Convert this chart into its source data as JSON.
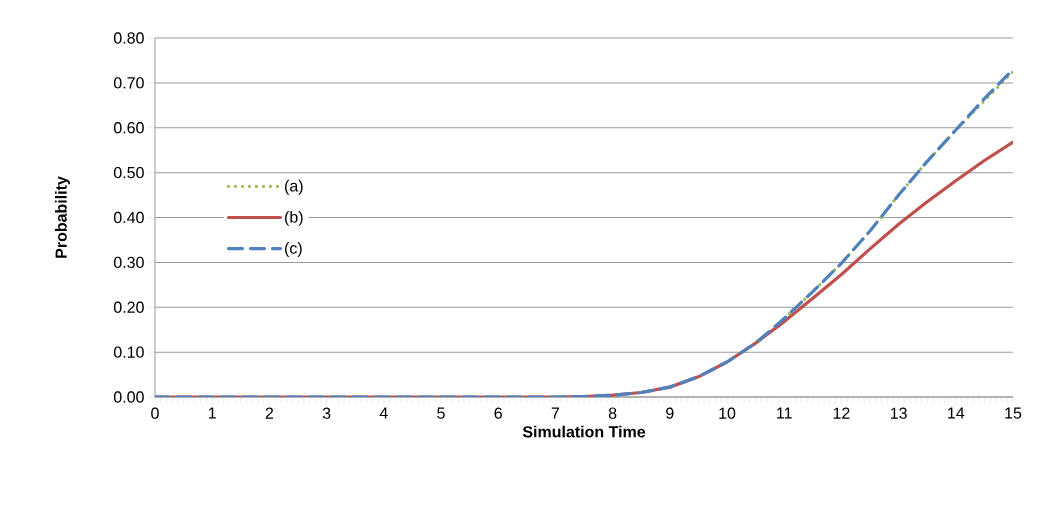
{
  "chart_data": {
    "type": "line",
    "xlabel": "Simulation Time",
    "ylabel": "Probability",
    "x": [
      0,
      1,
      2,
      3,
      4,
      5,
      6,
      7,
      7.5,
      8,
      8.5,
      9,
      9.5,
      10,
      10.5,
      11,
      11.5,
      12,
      12.5,
      13,
      13.5,
      14,
      14.5,
      15
    ],
    "series": [
      {
        "name": "(a)",
        "color": "#9bbb59",
        "line_style": "dotted",
        "values": [
          null,
          null,
          null,
          null,
          null,
          null,
          null,
          null,
          null,
          null,
          null,
          null,
          null,
          null,
          null,
          0.175,
          0.235,
          0.298,
          0.37,
          0.45,
          0.525,
          0.595,
          0.66,
          0.725
        ]
      },
      {
        "name": "(b)",
        "color": "#c0504d",
        "line_style": "solid",
        "values": [
          0,
          0,
          0,
          0,
          0,
          0,
          0,
          0,
          0.001,
          0.004,
          0.01,
          0.022,
          0.045,
          0.078,
          0.12,
          0.168,
          0.22,
          0.273,
          0.33,
          0.385,
          0.435,
          0.482,
          0.527,
          0.568
        ]
      },
      {
        "name": "(c)",
        "color": "#4f81bd",
        "line_style": "dashed",
        "values": [
          0,
          0,
          0,
          0,
          0,
          0,
          0,
          0,
          0.001,
          0.004,
          0.01,
          0.022,
          0.045,
          0.078,
          0.12,
          0.175,
          0.235,
          0.298,
          0.37,
          0.45,
          0.525,
          0.595,
          0.665,
          0.73
        ]
      }
    ],
    "xlim": [
      0,
      15
    ],
    "xticks": [
      0,
      1,
      2,
      3,
      4,
      5,
      6,
      7,
      8,
      9,
      10,
      11,
      12,
      13,
      14,
      15
    ],
    "ylim": [
      0,
      0.8
    ],
    "yticks": [
      {
        "value": 0,
        "label": "0.00"
      },
      {
        "value": 0.1,
        "label": "0.10"
      },
      {
        "value": 0.2,
        "label": "0.20"
      },
      {
        "value": 0.3,
        "label": "0.30"
      },
      {
        "value": 0.4,
        "label": "0.40"
      },
      {
        "value": 0.5,
        "label": "0.50"
      },
      {
        "value": 0.6,
        "label": "0.60"
      },
      {
        "value": 0.7,
        "label": "0.70"
      },
      {
        "value": 0.8,
        "label": "0.80"
      }
    ],
    "grid": "y",
    "legend": "left",
    "marker": "none"
  }
}
